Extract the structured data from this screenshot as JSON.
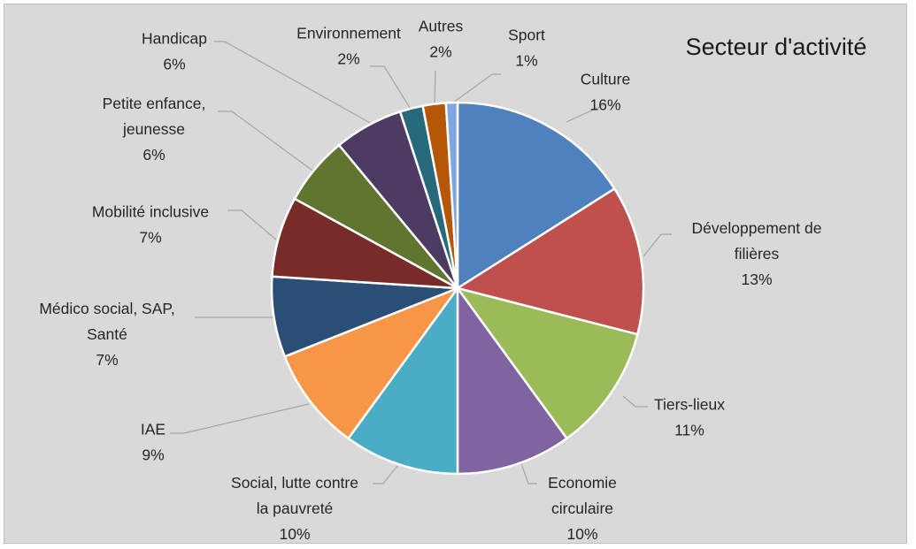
{
  "chart_data": {
    "type": "pie",
    "title": "Secteur d'activité",
    "slices": [
      {
        "label": [
          "Culture"
        ],
        "pct": "16%",
        "value": 16,
        "color": "#4f81bd"
      },
      {
        "label": [
          "Développement de",
          "filières"
        ],
        "pct": "13%",
        "value": 13,
        "color": "#c0504d"
      },
      {
        "label": [
          "Tiers-lieux"
        ],
        "pct": "11%",
        "value": 11,
        "color": "#9bbb59"
      },
      {
        "label": [
          "Economie",
          "circulaire"
        ],
        "pct": "10%",
        "value": 10,
        "color": "#8064a2"
      },
      {
        "label": [
          "Social, lutte contre",
          "la pauvreté"
        ],
        "pct": "10%",
        "value": 10,
        "color": "#4bacc6"
      },
      {
        "label": [
          "IAE"
        ],
        "pct": "9%",
        "value": 9,
        "color": "#f79646"
      },
      {
        "label": [
          "Médico social, SAP,",
          "Santé"
        ],
        "pct": "7%",
        "value": 7,
        "color": "#2c4d75"
      },
      {
        "label": [
          "Mobilité inclusive"
        ],
        "pct": "7%",
        "value": 7,
        "color": "#772c2a"
      },
      {
        "label": [
          "Petite enfance,",
          "jeunesse"
        ],
        "pct": "6%",
        "value": 6,
        "color": "#5f7530"
      },
      {
        "label": [
          "Handicap"
        ],
        "pct": "6%",
        "value": 6,
        "color": "#4d3b62"
      },
      {
        "label": [
          "Environnement"
        ],
        "pct": "2%",
        "value": 2,
        "color": "#276a7c"
      },
      {
        "label": [
          "Autres"
        ],
        "pct": "2%",
        "value": 2,
        "color": "#b65708"
      },
      {
        "label": [
          "Sport"
        ],
        "pct": "1%",
        "value": 1,
        "color": "#7ea6e0"
      }
    ]
  }
}
